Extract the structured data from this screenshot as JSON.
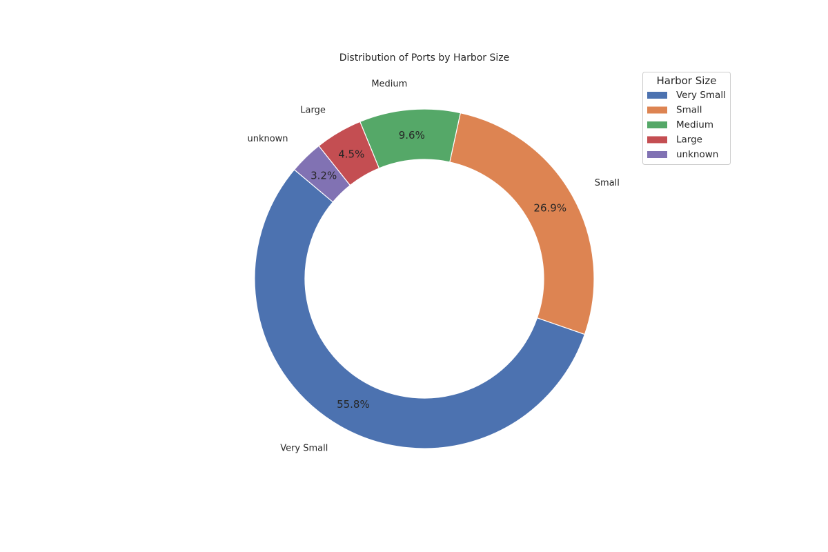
{
  "chart_data": {
    "type": "pie",
    "style": "donut",
    "title": "Distribution of Ports by Harbor Size",
    "categories": [
      "Very Small",
      "Small",
      "Medium",
      "Large",
      "unknown"
    ],
    "values": [
      55.8,
      26.9,
      9.6,
      4.5,
      3.2
    ],
    "value_labels": [
      "55.8%",
      "26.9%",
      "9.6%",
      "4.5%",
      "3.2%"
    ],
    "colors": [
      "#4c72b0",
      "#dd8452",
      "#55a868",
      "#c44e52",
      "#8172b3"
    ],
    "legend": {
      "title": "Harbor Size",
      "placement": "top-right",
      "entries": [
        "Very Small",
        "Small",
        "Medium",
        "Large",
        "unknown"
      ]
    },
    "start_angle_deg": 140,
    "direction": "counterclockwise"
  }
}
